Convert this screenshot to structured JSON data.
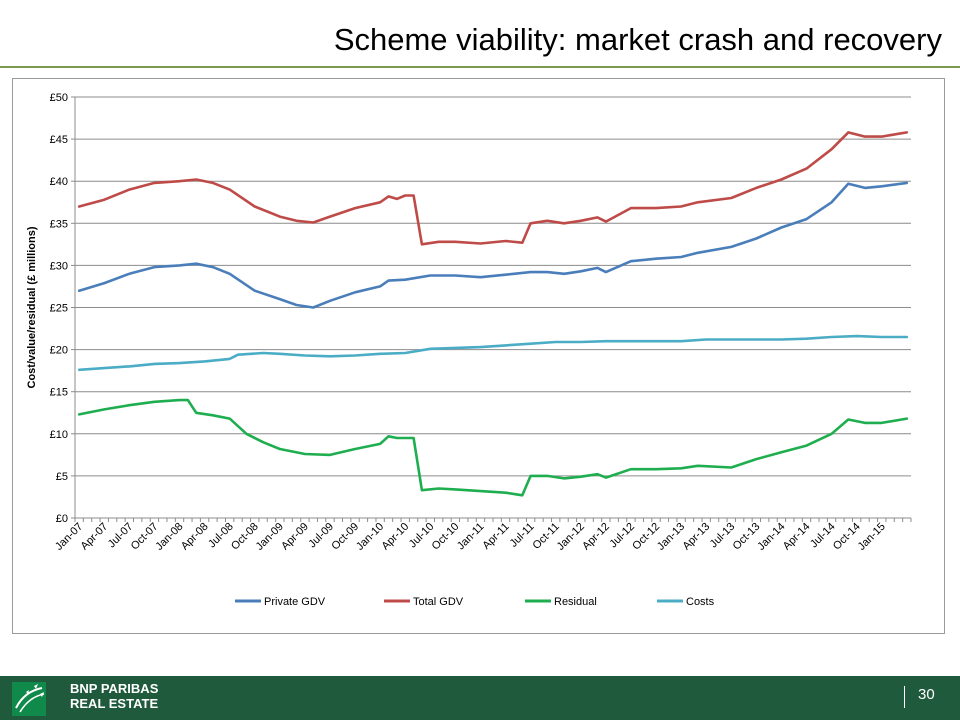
{
  "slide": {
    "title": "Scheme viability: market crash and recovery",
    "page_number": "30"
  },
  "footer": {
    "brand_line1": "BNP PARIBAS",
    "brand_line2": "REAL ESTATE",
    "colors": {
      "band": "#1f5a3c",
      "rule": "#7a9a4e"
    }
  },
  "chart_data": {
    "type": "line",
    "ylabel": "Cost/value/residual (£ millions)",
    "ylim": [
      0,
      50
    ],
    "yticks": [
      "£0",
      "£5",
      "£10",
      "£15",
      "£20",
      "£25",
      "£30",
      "£35",
      "£40",
      "£45",
      "£50"
    ],
    "grid": true,
    "legend_position": "bottom",
    "x_tick_labels": [
      "Jan-07",
      "Apr-07",
      "Jul-07",
      "Oct-07",
      "Jan-08",
      "Apr-08",
      "Jul-08",
      "Oct-08",
      "Jan-09",
      "Apr-09",
      "Jul-09",
      "Oct-09",
      "Jan-10",
      "Apr-10",
      "Jul-10",
      "Oct-10",
      "Jan-11",
      "Apr-11",
      "Jul-11",
      "Oct-11",
      "Jan-12",
      "Apr-12",
      "Jul-12",
      "Oct-12",
      "Jan-13",
      "Apr-13",
      "Jul-13",
      "Oct-13",
      "Jan-14",
      "Apr-14",
      "Jul-14",
      "Oct-14",
      "Jan-15"
    ],
    "series": [
      {
        "name": "Private GDV",
        "color": "#4a7ebb",
        "points": [
          [
            "Jan-07",
            27.0
          ],
          [
            "Apr-07",
            27.9
          ],
          [
            "Jul-07",
            29.0
          ],
          [
            "Oct-07",
            29.8
          ],
          [
            "Jan-08",
            30.0
          ],
          [
            "Mar-08",
            30.2
          ],
          [
            "May-08",
            29.8
          ],
          [
            "Jul-08",
            29.0
          ],
          [
            "Oct-08",
            27.0
          ],
          [
            "Jan-09",
            26.0
          ],
          [
            "Mar-09",
            25.3
          ],
          [
            "May-09",
            25.0
          ],
          [
            "Jul-09",
            25.8
          ],
          [
            "Oct-09",
            26.8
          ],
          [
            "Jan-10",
            27.5
          ],
          [
            "Feb-10",
            28.2
          ],
          [
            "Apr-10",
            28.3
          ],
          [
            "Jul-10",
            28.8
          ],
          [
            "Oct-10",
            28.8
          ],
          [
            "Jan-11",
            28.6
          ],
          [
            "Apr-11",
            28.9
          ],
          [
            "Jul-11",
            29.2
          ],
          [
            "Sep-11",
            29.2
          ],
          [
            "Nov-11",
            29.0
          ],
          [
            "Jan-12",
            29.3
          ],
          [
            "Mar-12",
            29.7
          ],
          [
            "Apr-12",
            29.2
          ],
          [
            "Jul-12",
            30.5
          ],
          [
            "Oct-12",
            30.8
          ],
          [
            "Jan-13",
            31.0
          ],
          [
            "Mar-13",
            31.5
          ],
          [
            "Jul-13",
            32.2
          ],
          [
            "Oct-13",
            33.2
          ],
          [
            "Jan-14",
            34.5
          ],
          [
            "Apr-14",
            35.5
          ],
          [
            "Jul-14",
            37.5
          ],
          [
            "Sep-14",
            39.7
          ],
          [
            "Nov-14",
            39.2
          ],
          [
            "Jan-15",
            39.4
          ],
          [
            "Apr-15",
            39.8
          ]
        ]
      },
      {
        "name": "Total GDV",
        "color": "#be4b48",
        "points": [
          [
            "Jan-07",
            37.0
          ],
          [
            "Apr-07",
            37.8
          ],
          [
            "Jul-07",
            39.0
          ],
          [
            "Oct-07",
            39.8
          ],
          [
            "Jan-08",
            40.0
          ],
          [
            "Mar-08",
            40.2
          ],
          [
            "May-08",
            39.8
          ],
          [
            "Jul-08",
            39.0
          ],
          [
            "Oct-08",
            37.0
          ],
          [
            "Jan-09",
            35.8
          ],
          [
            "Mar-09",
            35.3
          ],
          [
            "May-09",
            35.1
          ],
          [
            "Jul-09",
            35.8
          ],
          [
            "Oct-09",
            36.8
          ],
          [
            "Jan-10",
            37.5
          ],
          [
            "Feb-10",
            38.2
          ],
          [
            "Mar-10",
            37.9
          ],
          [
            "Apr-10",
            38.3
          ],
          [
            "May-10",
            38.3
          ],
          [
            "Jun-10",
            32.5
          ],
          [
            "Aug-10",
            32.8
          ],
          [
            "Oct-10",
            32.8
          ],
          [
            "Jan-11",
            32.6
          ],
          [
            "Apr-11",
            32.9
          ],
          [
            "Jun-11",
            32.7
          ],
          [
            "Jul-11",
            35.0
          ],
          [
            "Sep-11",
            35.3
          ],
          [
            "Nov-11",
            35.0
          ],
          [
            "Jan-12",
            35.3
          ],
          [
            "Mar-12",
            35.7
          ],
          [
            "Apr-12",
            35.2
          ],
          [
            "Jul-12",
            36.8
          ],
          [
            "Oct-12",
            36.8
          ],
          [
            "Jan-13",
            37.0
          ],
          [
            "Mar-13",
            37.5
          ],
          [
            "Jul-13",
            38.0
          ],
          [
            "Oct-13",
            39.2
          ],
          [
            "Jan-14",
            40.2
          ],
          [
            "Apr-14",
            41.5
          ],
          [
            "Jul-14",
            43.8
          ],
          [
            "Sep-14",
            45.8
          ],
          [
            "Nov-14",
            45.3
          ],
          [
            "Jan-15",
            45.3
          ],
          [
            "Apr-15",
            45.8
          ]
        ]
      },
      {
        "name": "Residual",
        "color": "#1fae4f",
        "points": [
          [
            "Jan-07",
            12.3
          ],
          [
            "Apr-07",
            12.9
          ],
          [
            "Jul-07",
            13.4
          ],
          [
            "Oct-07",
            13.8
          ],
          [
            "Jan-08",
            14.0
          ],
          [
            "Feb-08",
            14.0
          ],
          [
            "Mar-08",
            12.5
          ],
          [
            "May-08",
            12.2
          ],
          [
            "Jul-08",
            11.8
          ],
          [
            "Sep-08",
            10.0
          ],
          [
            "Nov-08",
            9.0
          ],
          [
            "Jan-09",
            8.2
          ],
          [
            "Apr-09",
            7.6
          ],
          [
            "Jul-09",
            7.5
          ],
          [
            "Oct-09",
            8.2
          ],
          [
            "Jan-10",
            8.8
          ],
          [
            "Feb-10",
            9.7
          ],
          [
            "Mar-10",
            9.5
          ],
          [
            "May-10",
            9.5
          ],
          [
            "Jun-10",
            3.3
          ],
          [
            "Aug-10",
            3.5
          ],
          [
            "Oct-10",
            3.4
          ],
          [
            "Jan-11",
            3.2
          ],
          [
            "Apr-11",
            3.0
          ],
          [
            "Jun-11",
            2.7
          ],
          [
            "Jul-11",
            5.0
          ],
          [
            "Sep-11",
            5.0
          ],
          [
            "Nov-11",
            4.7
          ],
          [
            "Jan-12",
            4.9
          ],
          [
            "Mar-12",
            5.2
          ],
          [
            "Apr-12",
            4.8
          ],
          [
            "Jul-12",
            5.8
          ],
          [
            "Oct-12",
            5.8
          ],
          [
            "Jan-13",
            5.9
          ],
          [
            "Mar-13",
            6.2
          ],
          [
            "Jul-13",
            6.0
          ],
          [
            "Oct-13",
            7.0
          ],
          [
            "Jan-14",
            7.8
          ],
          [
            "Apr-14",
            8.6
          ],
          [
            "Jul-14",
            10.0
          ],
          [
            "Sep-14",
            11.7
          ],
          [
            "Nov-14",
            11.3
          ],
          [
            "Jan-15",
            11.3
          ],
          [
            "Apr-15",
            11.8
          ]
        ]
      },
      {
        "name": "Costs",
        "color": "#4bacc6",
        "points": [
          [
            "Jan-07",
            17.6
          ],
          [
            "Apr-07",
            17.8
          ],
          [
            "Jul-07",
            18.0
          ],
          [
            "Oct-07",
            18.3
          ],
          [
            "Jan-08",
            18.4
          ],
          [
            "Apr-08",
            18.6
          ],
          [
            "Jul-08",
            18.9
          ],
          [
            "Aug-08",
            19.4
          ],
          [
            "Nov-08",
            19.6
          ],
          [
            "Jan-09",
            19.5
          ],
          [
            "Apr-09",
            19.3
          ],
          [
            "Jul-09",
            19.2
          ],
          [
            "Oct-09",
            19.3
          ],
          [
            "Jan-10",
            19.5
          ],
          [
            "Apr-10",
            19.6
          ],
          [
            "Jul-10",
            20.1
          ],
          [
            "Oct-10",
            20.2
          ],
          [
            "Jan-11",
            20.3
          ],
          [
            "Apr-11",
            20.5
          ],
          [
            "Jul-11",
            20.7
          ],
          [
            "Oct-11",
            20.9
          ],
          [
            "Jan-12",
            20.9
          ],
          [
            "Apr-12",
            21.0
          ],
          [
            "Jul-12",
            21.0
          ],
          [
            "Oct-12",
            21.0
          ],
          [
            "Jan-13",
            21.0
          ],
          [
            "Apr-13",
            21.2
          ],
          [
            "Jul-13",
            21.2
          ],
          [
            "Oct-13",
            21.2
          ],
          [
            "Jan-14",
            21.2
          ],
          [
            "Apr-14",
            21.3
          ],
          [
            "Jul-14",
            21.5
          ],
          [
            "Oct-14",
            21.6
          ],
          [
            "Jan-15",
            21.5
          ],
          [
            "Apr-15",
            21.5
          ]
        ]
      }
    ]
  }
}
